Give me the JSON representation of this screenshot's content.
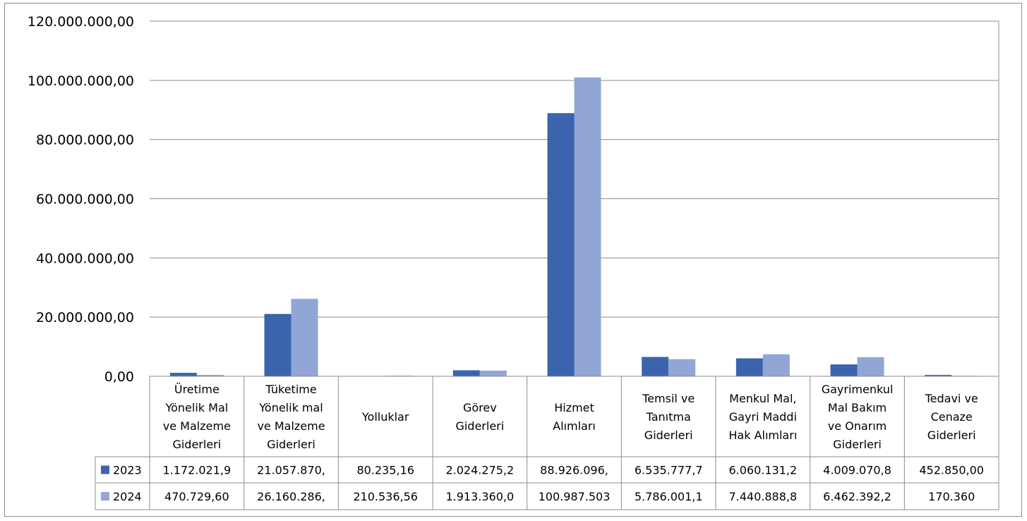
{
  "chart_data": {
    "type": "bar",
    "title": "",
    "xlabel": "",
    "ylabel": "",
    "ylim": [
      0,
      120000000
    ],
    "yticks": [
      "0,00",
      "20.000.000,00",
      "40.000.000,00",
      "60.000.000,00",
      "80.000.000,00",
      "100.000.000,00",
      "120.000.000,00"
    ],
    "grid": true,
    "legend": "data-table-left",
    "categories": [
      [
        "Üretime",
        "Yönelik Mal",
        "ve Malzeme",
        "Giderleri"
      ],
      [
        "Tüketime",
        "Yönelik mal",
        "ve Malzeme",
        "Giderleri"
      ],
      [
        "Yolluklar"
      ],
      [
        "Görev",
        "Giderleri"
      ],
      [
        "Hizmet",
        "Alımları"
      ],
      [
        "Temsil ve",
        "Tanıtma",
        "Giderleri"
      ],
      [
        "Menkul Mal,",
        "Gayri Maddi",
        "Hak Alımları"
      ],
      [
        "Gayrimenkul",
        "Mal Bakım",
        "ve Onarım",
        "Giderleri"
      ],
      [
        "Tedavi ve",
        "Cenaze",
        "Giderleri"
      ]
    ],
    "series": [
      {
        "name": "2023",
        "color": "#3b64ad",
        "values": [
          1172021.9,
          21057870,
          80235.16,
          2024275.2,
          88926096,
          6535777.7,
          6060131.2,
          4009070.8,
          452850
        ],
        "labels": [
          "1.172.021,9",
          "21.057.870,",
          "80.235,16",
          "2.024.275,2",
          "88.926.096,",
          "6.535.777,7",
          "6.060.131,2",
          "4.009.070,8",
          "452.850,00"
        ]
      },
      {
        "name": "2024",
        "color": "#92a6d6",
        "values": [
          470729.6,
          26160286,
          210536.56,
          1913360,
          100987503,
          5786001.1,
          7440888.8,
          6462392.2,
          170360
        ],
        "labels": [
          "470.729,60",
          "26.160.286,",
          "210.536,56",
          "1.913.360,0",
          "100.987.503",
          "5.786.001,1",
          "7.440.888,8",
          "6.462.392,2",
          "170.360"
        ]
      }
    ]
  }
}
